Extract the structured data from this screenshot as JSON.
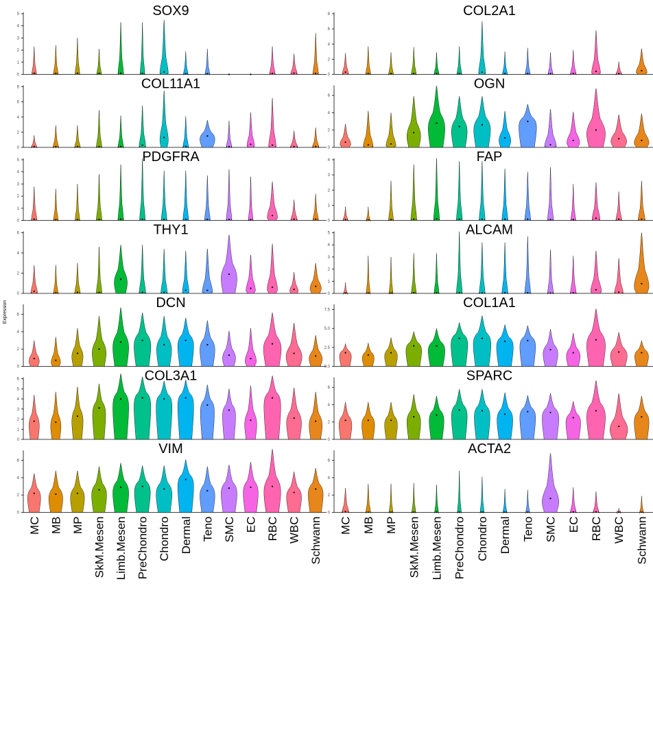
{
  "figure": {
    "ylabel": "Expression"
  },
  "chart_data": {
    "type": "violin",
    "categories": [
      "MC",
      "MB",
      "MP",
      "SkM.Mesen",
      "Limb.Mesen",
      "PreChondro",
      "Chondro",
      "Dermal",
      "Teno",
      "SMC",
      "EC",
      "RBC",
      "WBC",
      "Schwann"
    ],
    "colors": [
      "#F8766D",
      "#DB8E00",
      "#AEA200",
      "#64B200",
      "#00BD5C",
      "#00C1A7",
      "#00BADE",
      "#00A6FF",
      "#B385FF",
      "#EF67EB",
      "#FF63B6",
      "#F8766D",
      "#DB8E00",
      "#AEA200"
    ],
    "palette": [
      "#F8766D",
      "#DE8C00",
      "#B79F00",
      "#7CAE00",
      "#00BA38",
      "#00C08B",
      "#00BFC4",
      "#00B4F0",
      "#619CFF",
      "#C77CFF",
      "#F564E3",
      "#FF64B0",
      "#FF6C91",
      "#E7861B"
    ],
    "panels": [
      {
        "title": "SOX9",
        "ylim": [
          0,
          5
        ],
        "yticks": [
          0,
          1,
          2,
          3,
          4,
          5
        ],
        "ytick_labels": [
          "0",
          "1",
          "2",
          "3",
          "4",
          "5"
        ],
        "max": [
          2.3,
          2.4,
          3.0,
          2.1,
          4.3,
          4.3,
          4.5,
          1.9,
          2.1,
          0.05,
          0.05,
          2.3,
          1.7,
          3.4
        ],
        "median": [
          0.1,
          0.08,
          0.1,
          0.08,
          0.1,
          0.08,
          0.2,
          0.05,
          0.05,
          0,
          0,
          0.08,
          0.1,
          0.08
        ],
        "width": [
          0.25,
          0.25,
          0.25,
          0.25,
          0.3,
          0.25,
          0.45,
          0.25,
          0.25,
          0.02,
          0.02,
          0.3,
          0.35,
          0.3
        ]
      },
      {
        "title": "COL2A1",
        "ylim": [
          0,
          8
        ],
        "yticks": [
          0,
          2,
          4,
          6,
          8
        ],
        "ytick_labels": [
          "0",
          "2",
          "4",
          "6",
          "8"
        ],
        "max": [
          2.8,
          3.7,
          2.9,
          3.6,
          2.9,
          3.7,
          7.0,
          3.0,
          3.5,
          2.9,
          3.2,
          5.8,
          1.7,
          3.4
        ],
        "median": [
          0.3,
          0.1,
          0.1,
          0.1,
          0.1,
          0.1,
          0.3,
          0.1,
          0.1,
          0.1,
          0.1,
          0.4,
          0.1,
          0.5
        ],
        "width": [
          0.3,
          0.25,
          0.25,
          0.25,
          0.25,
          0.25,
          0.35,
          0.25,
          0.25,
          0.25,
          0.3,
          0.45,
          0.3,
          0.55
        ]
      },
      {
        "title": "COL11A1",
        "ylim": [
          0,
          8
        ],
        "yticks": [
          0,
          2,
          4,
          6,
          8
        ],
        "ytick_labels": [
          "0",
          "2",
          "4",
          "6",
          "8"
        ],
        "max": [
          1.6,
          2.9,
          2.9,
          4.9,
          4.2,
          5.5,
          7.5,
          4.1,
          3.6,
          3.5,
          4.6,
          6.5,
          2.2,
          2.6
        ],
        "median": [
          0.1,
          0.1,
          0.1,
          0.1,
          0.1,
          0.3,
          1.3,
          0.1,
          1.5,
          0.1,
          0.4,
          0.3,
          0.1,
          0.1
        ],
        "width": [
          0.3,
          0.3,
          0.3,
          0.3,
          0.3,
          0.35,
          0.45,
          0.3,
          0.8,
          0.3,
          0.4,
          0.4,
          0.4,
          0.35
        ]
      },
      {
        "title": "OGN",
        "ylim": [
          0,
          7
        ],
        "yticks": [
          0,
          2,
          4,
          6
        ],
        "ytick_labels": [
          "0",
          "2",
          "4",
          "6"
        ],
        "max": [
          2.7,
          4.2,
          4.0,
          5.9,
          7.1,
          5.9,
          5.9,
          4.2,
          5.0,
          4.4,
          4.1,
          6.8,
          3.8,
          3.9
        ],
        "median": [
          0.6,
          0.3,
          0.4,
          1.7,
          2.8,
          2.4,
          2.6,
          1.1,
          3.0,
          0.3,
          0.8,
          2.0,
          1.0,
          0.8
        ],
        "width": [
          0.55,
          0.5,
          0.5,
          0.7,
          0.85,
          0.8,
          0.85,
          0.6,
          0.9,
          0.6,
          0.65,
          0.95,
          0.8,
          0.75
        ]
      },
      {
        "title": "PDGFRA",
        "ylim": [
          0,
          5
        ],
        "yticks": [
          0,
          1,
          2,
          3,
          4,
          5
        ],
        "ytick_labels": [
          "0",
          "1",
          "2",
          "3",
          "4",
          "5"
        ],
        "max": [
          2.8,
          2.6,
          3.0,
          3.8,
          4.6,
          5.1,
          4.1,
          4.1,
          3.7,
          4.2,
          3.6,
          3.2,
          1.7,
          2.2
        ],
        "median": [
          0.1,
          0.05,
          0.05,
          0.08,
          0.1,
          0.1,
          0.08,
          0.08,
          0.08,
          0.08,
          0.05,
          0.4,
          0.1,
          0.1
        ],
        "width": [
          0.3,
          0.25,
          0.25,
          0.3,
          0.3,
          0.3,
          0.3,
          0.3,
          0.3,
          0.3,
          0.25,
          0.55,
          0.35,
          0.3
        ]
      },
      {
        "title": "FAP",
        "ylim": [
          0,
          4
        ],
        "yticks": [
          0,
          1,
          2,
          3,
          4
        ],
        "ytick_labels": [
          "0",
          "1",
          "2",
          "3",
          "4"
        ],
        "max": [
          0.9,
          0.9,
          2.6,
          3.7,
          4.1,
          3.9,
          3.9,
          3.4,
          3.2,
          3.5,
          2.4,
          2.5,
          1.9,
          2.6
        ],
        "median": [
          0.05,
          0.02,
          0.05,
          0.08,
          0.1,
          0.08,
          0.08,
          0.08,
          0.08,
          0.05,
          0.05,
          0.15,
          0.08,
          0.08
        ],
        "width": [
          0.25,
          0.2,
          0.25,
          0.3,
          0.3,
          0.3,
          0.3,
          0.3,
          0.3,
          0.3,
          0.25,
          0.4,
          0.3,
          0.35
        ]
      },
      {
        "title": "THY1",
        "ylim": [
          0,
          6
        ],
        "yticks": [
          0,
          2,
          4,
          6
        ],
        "ytick_labels": [
          "0",
          "2",
          "4",
          "6"
        ],
        "max": [
          2.8,
          2.8,
          3.0,
          4.6,
          4.8,
          4.8,
          4.4,
          4.2,
          4.4,
          5.8,
          3.8,
          4.9,
          2.1,
          3.0
        ],
        "median": [
          0.2,
          0.05,
          0.1,
          0.1,
          1.4,
          0.1,
          0.1,
          0.3,
          0.3,
          1.9,
          0.5,
          0.6,
          0.4,
          0.7
        ],
        "width": [
          0.35,
          0.25,
          0.3,
          0.3,
          0.7,
          0.35,
          0.35,
          0.35,
          0.55,
          0.85,
          0.5,
          0.55,
          0.45,
          0.6
        ]
      },
      {
        "title": "ALCAM",
        "ylim": [
          0,
          5
        ],
        "yticks": [
          0,
          1,
          2,
          3,
          4,
          5
        ],
        "ytick_labels": [
          "0",
          "1",
          "2",
          "3",
          "4",
          "5"
        ],
        "max": [
          0.9,
          3.1,
          3.0,
          3.3,
          3.3,
          5.1,
          4.2,
          4.2,
          4.7,
          3.6,
          3.1,
          3.5,
          2.9,
          5.0
        ],
        "median": [
          0.02,
          0.02,
          0.02,
          0.05,
          0.05,
          0.05,
          0.05,
          0.05,
          0.05,
          0.02,
          0.05,
          0.3,
          0.1,
          0.8
        ],
        "width": [
          0.2,
          0.2,
          0.2,
          0.25,
          0.25,
          0.3,
          0.3,
          0.3,
          0.3,
          0.3,
          0.3,
          0.55,
          0.45,
          0.75
        ]
      },
      {
        "title": "DCN",
        "ylim": [
          0,
          7
        ],
        "yticks": [
          0,
          2,
          4,
          6
        ],
        "ytick_labels": [
          "0",
          "2",
          "4",
          "6"
        ],
        "max": [
          3.0,
          3.4,
          4.4,
          5.8,
          6.8,
          6.2,
          5.8,
          5.6,
          5.3,
          4.1,
          4.4,
          6.2,
          5.0,
          3.6
        ],
        "median": [
          0.9,
          0.7,
          1.5,
          2.0,
          2.8,
          3.0,
          2.5,
          3.0,
          2.5,
          1.3,
          0.9,
          2.6,
          1.5,
          1.2
        ],
        "width": [
          0.55,
          0.5,
          0.6,
          0.75,
          0.85,
          0.9,
          0.8,
          0.85,
          0.8,
          0.7,
          0.6,
          0.95,
          0.85,
          0.7
        ]
      },
      {
        "title": "COL1A1",
        "ylim": [
          0,
          8
        ],
        "yticks": [
          0,
          2.5,
          5,
          7.5
        ],
        "ytick_labels": [
          "0.0",
          "2.5",
          "5.0",
          "7.5"
        ],
        "max": [
          3.0,
          3.1,
          3.8,
          4.6,
          5.0,
          5.8,
          6.7,
          5.5,
          5.4,
          4.9,
          4.4,
          7.6,
          4.5,
          3.4
        ],
        "median": [
          1.8,
          1.5,
          1.8,
          2.7,
          2.7,
          3.7,
          3.7,
          3.3,
          3.4,
          2.2,
          1.8,
          3.5,
          1.9,
          1.8
        ],
        "width": [
          0.6,
          0.6,
          0.65,
          0.8,
          0.85,
          0.85,
          0.9,
          0.85,
          0.8,
          0.75,
          0.7,
          0.95,
          0.85,
          0.7
        ]
      },
      {
        "title": "COL3A1",
        "ylim": [
          0,
          6
        ],
        "yticks": [
          0,
          1,
          2,
          3,
          4,
          5,
          6
        ],
        "ytick_labels": [
          "0",
          "1",
          "2",
          "3",
          "4",
          "5",
          "6"
        ],
        "max": [
          4.4,
          4.7,
          5.2,
          5.5,
          6.5,
          6.2,
          5.8,
          5.9,
          5.4,
          5.0,
          5.3,
          6.3,
          5.1,
          4.7
        ],
        "median": [
          1.8,
          1.7,
          2.3,
          3.1,
          4.0,
          4.1,
          4.0,
          4.1,
          3.4,
          2.9,
          1.9,
          4.1,
          2.1,
          1.8
        ],
        "width": [
          0.55,
          0.55,
          0.6,
          0.7,
          0.85,
          0.9,
          0.85,
          0.85,
          0.75,
          0.7,
          0.65,
          0.9,
          0.8,
          0.7
        ]
      },
      {
        "title": "SPARC",
        "ylim": [
          0,
          7
        ],
        "yticks": [
          0,
          2,
          4,
          6
        ],
        "ytick_labels": [
          "0",
          "2",
          "4",
          "6"
        ],
        "max": [
          4.3,
          4.3,
          4.3,
          5.2,
          5.0,
          5.8,
          5.8,
          5.4,
          5.1,
          5.3,
          4.4,
          6.8,
          5.3,
          5.0
        ],
        "median": [
          2.2,
          2.2,
          2.2,
          2.6,
          2.8,
          3.4,
          3.3,
          2.9,
          3.2,
          3.1,
          2.5,
          3.3,
          1.5,
          2.6
        ],
        "width": [
          0.65,
          0.65,
          0.65,
          0.7,
          0.75,
          0.8,
          0.8,
          0.8,
          0.8,
          0.85,
          0.75,
          0.95,
          0.9,
          0.75
        ]
      },
      {
        "title": "VIM",
        "ylim": [
          0,
          7
        ],
        "yticks": [
          0,
          2,
          4,
          6
        ],
        "ytick_labels": [
          "0",
          "2",
          "4",
          "6"
        ],
        "max": [
          4.5,
          4.8,
          4.8,
          5.3,
          5.7,
          5.4,
          5.4,
          6.1,
          5.3,
          5.5,
          5.8,
          7.3,
          4.7,
          5.1
        ],
        "median": [
          2.2,
          2.1,
          2.2,
          2.6,
          2.9,
          3.0,
          2.7,
          3.8,
          2.5,
          2.8,
          2.9,
          3.0,
          2.3,
          2.7
        ],
        "width": [
          0.7,
          0.75,
          0.75,
          0.8,
          0.85,
          0.85,
          0.85,
          0.85,
          0.8,
          0.85,
          0.8,
          0.9,
          0.8,
          0.8
        ]
      },
      {
        "title": "ACTA2",
        "ylim": [
          0,
          7
        ],
        "yticks": [
          0,
          2,
          4,
          6
        ],
        "ytick_labels": [
          "0",
          "2",
          "4",
          "6"
        ],
        "max": [
          2.8,
          3.3,
          3.3,
          3.4,
          3.2,
          4.8,
          4.1,
          2.7,
          2.6,
          6.8,
          2.9,
          2.4,
          0.5,
          1.9
        ],
        "median": [
          0.1,
          0.02,
          0.02,
          0.02,
          0.02,
          0.02,
          0.02,
          0.02,
          0.02,
          1.6,
          0.05,
          0.05,
          0.02,
          0.02
        ],
        "width": [
          0.35,
          0.25,
          0.2,
          0.2,
          0.2,
          0.2,
          0.2,
          0.2,
          0.2,
          0.85,
          0.3,
          0.3,
          0.2,
          0.2
        ]
      }
    ]
  }
}
